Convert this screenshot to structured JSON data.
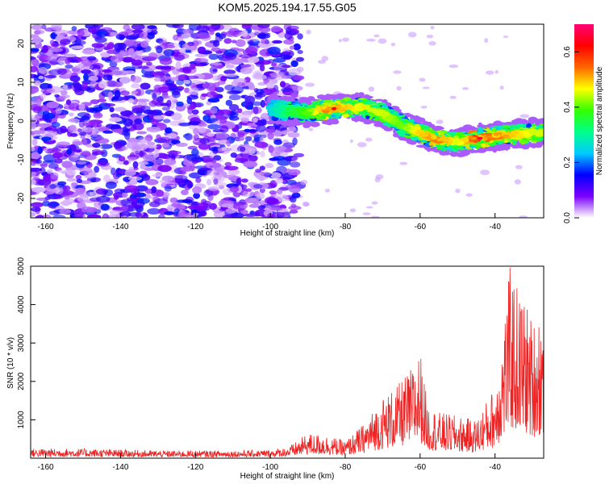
{
  "title": "KOM5.2025.194.17.55.G05",
  "chart_data": [
    {
      "type": "heatmap",
      "xlabel": "Height of straight line (km)",
      "ylabel": "Frequency (Hz)",
      "xlim": [
        -164,
        -27
      ],
      "ylim": [
        -25,
        25
      ],
      "xticks": [
        -160,
        -140,
        -120,
        -100,
        -80,
        -60,
        -40
      ],
      "yticks": [
        -20,
        -10,
        0,
        10,
        20
      ],
      "colorbar": {
        "label": "Normalized spectral amplitude",
        "range": [
          0,
          0.7
        ],
        "ticks": [
          0.0,
          0.2,
          0.4,
          0.6
        ],
        "tick_labels": [
          "0.0",
          "0.2",
          "0.4",
          "0.6"
        ],
        "colors": [
          "#ffffff",
          "#7b00ff",
          "#0000ff",
          "#00ccff",
          "#00ff88",
          "#33ff00",
          "#ffff00",
          "#ff6600",
          "#ff0000",
          "#ff0077"
        ]
      },
      "grid": false,
      "ridge": {
        "x": [
          -100,
          -95,
          -90,
          -85,
          -80,
          -75,
          -70,
          -65,
          -60,
          -55,
          -50,
          -45,
          -40,
          -35,
          -30,
          -27
        ],
        "y": [
          3,
          2.5,
          2.2,
          3,
          3.5,
          3.5,
          2,
          -1,
          -3,
          -5,
          -5.5,
          -4.5,
          -4,
          -3.5,
          -3,
          -3
        ],
        "peak_amplitude": [
          0.25,
          0.35,
          0.4,
          0.55,
          0.5,
          0.45,
          0.45,
          0.4,
          0.5,
          0.55,
          0.45,
          0.6,
          0.55,
          0.5,
          0.45,
          0.45
        ]
      },
      "noise_region": {
        "x": [
          -164,
          -92
        ],
        "y": [
          -25,
          25
        ],
        "amplitude": [
          0.0,
          0.15
        ]
      }
    },
    {
      "type": "line",
      "xlabel": "Height of straight line (km)",
      "ylabel": "SNR (10 * v/v)",
      "xlim": [
        -164,
        -27
      ],
      "ylim": [
        0,
        5000
      ],
      "xticks": [
        -160,
        -140,
        -120,
        -100,
        -80,
        -60,
        -40
      ],
      "yticks": [
        1000,
        2000,
        3000,
        4000,
        5000
      ],
      "color": "#ee2222",
      "grid": false,
      "envelope": {
        "x": [
          -164,
          -150,
          -130,
          -110,
          -100,
          -95,
          -90,
          -85,
          -80,
          -75,
          -70,
          -66,
          -62,
          -60,
          -58,
          -55,
          -50,
          -45,
          -40,
          -38,
          -36,
          -34,
          -32,
          -30,
          -28,
          -27
        ],
        "y": [
          250,
          250,
          200,
          200,
          220,
          300,
          650,
          600,
          450,
          900,
          1600,
          1900,
          2400,
          2850,
          1400,
          1200,
          1100,
          1000,
          1900,
          3300,
          5000,
          4500,
          4200,
          3600,
          3900,
          3900
        ]
      }
    }
  ]
}
